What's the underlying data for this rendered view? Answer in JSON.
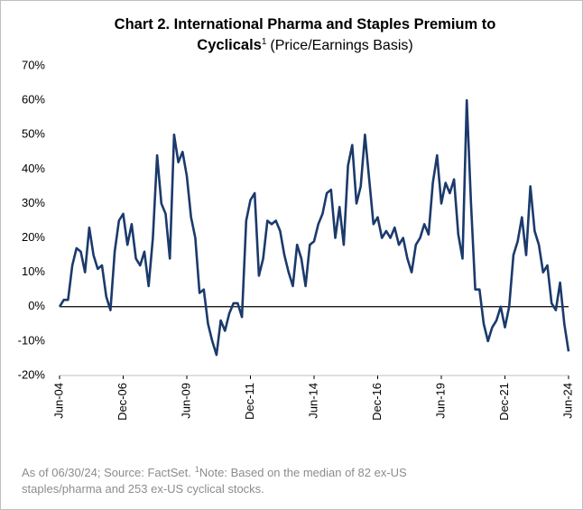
{
  "chart_data": {
    "type": "line",
    "title_line1": "Chart 2. International Pharma and Staples Premium to",
    "title_line2_bold": "Cyclicals",
    "title_sup": "1",
    "title_line2_rest": "(Price/Earnings Basis)",
    "footnote_line1_a": "As of 06/30/24; Source: FactSet.",
    "footnote_sup": "1",
    "footnote_line1_b": "Note: Based on the median of 82 ex-US",
    "footnote_line2": "staples/pharma and 253 ex-US cyclical stocks.",
    "color": "#1b3a6b",
    "ylim": [
      -20,
      70
    ],
    "yticks": [
      {
        "value": -20,
        "label": "-20%"
      },
      {
        "value": -10,
        "label": "-10%"
      },
      {
        "value": 0,
        "label": "0%"
      },
      {
        "value": 10,
        "label": "10%"
      },
      {
        "value": 20,
        "label": "20%"
      },
      {
        "value": 30,
        "label": "30%"
      },
      {
        "value": 40,
        "label": "40%"
      },
      {
        "value": 50,
        "label": "50%"
      },
      {
        "value": 60,
        "label": "60%"
      },
      {
        "value": 70,
        "label": "70%"
      }
    ],
    "categories": [
      "Jun-04",
      null,
      null,
      null,
      null,
      null,
      null,
      null,
      null,
      null,
      null,
      null,
      null,
      null,
      null,
      "Dec-06",
      null,
      null,
      null,
      null,
      null,
      null,
      null,
      null,
      null,
      null,
      null,
      null,
      null,
      null,
      "Jun-09",
      null,
      null,
      null,
      null,
      null,
      null,
      null,
      null,
      null,
      null,
      null,
      null,
      null,
      null,
      "Dec-11",
      null,
      null,
      null,
      null,
      null,
      null,
      null,
      null,
      null,
      null,
      null,
      null,
      null,
      null,
      "Jun-14",
      null,
      null,
      null,
      null,
      null,
      null,
      null,
      null,
      null,
      null,
      null,
      null,
      null,
      null,
      "Dec-16",
      null,
      null,
      null,
      null,
      null,
      null,
      null,
      null,
      null,
      null,
      null,
      null,
      null,
      null,
      "Jun-19",
      null,
      null,
      null,
      null,
      null,
      null,
      null,
      null,
      null,
      null,
      null,
      null,
      null,
      null,
      "Dec-21",
      null,
      null,
      null,
      null,
      null,
      null,
      null,
      null,
      null,
      null,
      null,
      null,
      null,
      null,
      "Jun-24"
    ],
    "values": [
      0,
      2,
      2,
      12,
      17,
      16,
      10,
      23,
      15,
      11,
      12,
      3,
      -1,
      16,
      25,
      27,
      18,
      24,
      14,
      12,
      16,
      6,
      20,
      44,
      30,
      27,
      14,
      50,
      42,
      45,
      38,
      26,
      20,
      4,
      5,
      -5,
      -10,
      -14,
      -4,
      -7,
      -2,
      1,
      1,
      -3,
      25,
      31,
      33,
      9,
      14,
      25,
      24,
      25,
      22,
      15,
      10,
      6,
      18,
      14,
      6,
      18,
      19,
      24,
      27,
      33,
      34,
      20,
      29,
      18,
      41,
      47,
      30,
      35,
      50,
      37,
      24,
      26,
      20,
      22,
      20,
      23,
      18,
      20,
      14,
      10,
      18,
      20,
      24,
      21,
      36,
      44,
      30,
      36,
      33,
      37,
      21,
      14,
      60,
      30,
      5,
      5,
      -5,
      -10,
      -6,
      -4,
      0,
      -6,
      0,
      15,
      19,
      26,
      15,
      35,
      22,
      18,
      10,
      12,
      1,
      -1,
      7,
      -5,
      -13
    ]
  }
}
